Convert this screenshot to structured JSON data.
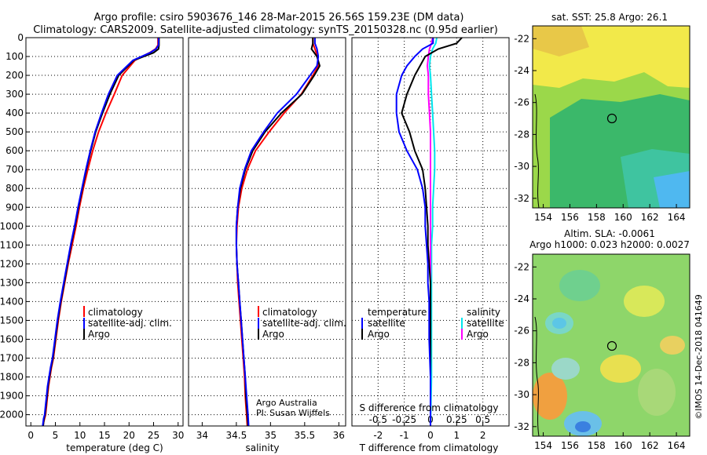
{
  "header": {
    "title_line1": "Argo profile: csiro 5903676_146 28-Mar-2015 26.56S 159.23E (DM data)",
    "title_line2": "Climatology: CARS2009. Satellite-adjusted climatology: synTS_20150328.nc (0.95d earlier)"
  },
  "colors": {
    "climatology": "#ff0000",
    "satellite": "#0000ff",
    "argo": "#000000",
    "sat_salinity": "#00e5ee",
    "argo_salinity": "#ff00ff"
  },
  "depth_axis": {
    "ticks": [
      "0",
      "100",
      "200",
      "300",
      "400",
      "500",
      "600",
      "700",
      "800",
      "900",
      "1000",
      "1100",
      "1200",
      "1300",
      "1400",
      "1500",
      "1600",
      "1700",
      "1800",
      "1900",
      "2000"
    ]
  },
  "panels": {
    "temperature": {
      "xlabel": "temperature (deg C)",
      "xticks": [
        "0",
        "5",
        "10",
        "15",
        "20",
        "25",
        "30"
      ],
      "legend": [
        "climatology",
        "satellite-adj. clim.",
        "Argo"
      ]
    },
    "salinity": {
      "xlabel": "salinity",
      "xticks": [
        "34",
        "34.5",
        "35",
        "35.5",
        "36"
      ],
      "legend": [
        "climatology",
        "satellite-adj. clim.",
        "Argo"
      ],
      "credit_line1": "Argo Australia",
      "credit_line2": "PI: Susan Wijffels"
    },
    "difference": {
      "xlabel": "T difference from climatology",
      "xticks": [
        "-2",
        "-1",
        "0",
        "1",
        "2"
      ],
      "top_label": "S difference from climatology",
      "top_ticks": [
        "-0.5",
        "-0.25",
        "0",
        "0.25",
        "0.5"
      ],
      "legend_t_head": "temperature",
      "legend_s_head": "salinity",
      "legend_t": [
        "satellite",
        "Argo"
      ],
      "legend_s": [
        "satellite",
        "Argo"
      ]
    }
  },
  "maps": {
    "sst": {
      "title": "sat. SST: 25.8 Argo: 26.1",
      "yticks": [
        "-22",
        "-24",
        "-26",
        "-28",
        "-30",
        "-32"
      ],
      "xticks": [
        "154",
        "156",
        "158",
        "160",
        "162",
        "164"
      ]
    },
    "sla": {
      "title_line1": "Altim. SLA: -0.0061",
      "title_line2": "Argo h1000: 0.023 h2000: 0.0027",
      "yticks": [
        "-22",
        "-24",
        "-26",
        "-28",
        "-30",
        "-32"
      ],
      "xticks": [
        "154",
        "156",
        "158",
        "160",
        "162",
        "164"
      ]
    },
    "profile_position": {
      "lon": 159.23,
      "lat": -26.56
    }
  },
  "watermark": "©IMOS 14-Dec-2018 041649",
  "chart_data": [
    {
      "type": "line",
      "xlabel": "temperature (deg C)",
      "ylabel": "",
      "xlim": [
        -1,
        31
      ],
      "ylim": [
        2060,
        0
      ],
      "series": [
        {
          "name": "climatology",
          "x": [
            25.9,
            25.9,
            25.4,
            24.2,
            21.2,
            18.6,
            17.0,
            15.3,
            13.8,
            12.6,
            11.6,
            10.7,
            9.9,
            9.2,
            8.4,
            7.6,
            6.9,
            6.2,
            5.6,
            5.1,
            4.6,
            4.2,
            3.9,
            3.6,
            3.4,
            3.2,
            3.0,
            2.8,
            2.6,
            2.5
          ],
          "y": [
            0,
            40,
            60,
            80,
            120,
            200,
            300,
            400,
            500,
            600,
            700,
            800,
            900,
            1000,
            1100,
            1200,
            1300,
            1400,
            1500,
            1600,
            1700,
            1750,
            1800,
            1850,
            1900,
            1950,
            2000,
            2020,
            2040,
            2060
          ]
        },
        {
          "name": "satellite-adj. clim.",
          "x": [
            26.0,
            26.0,
            25.5,
            24.3,
            20.8,
            17.6,
            15.8,
            14.4,
            13.1,
            12.1,
            11.2,
            10.4,
            9.6,
            8.9,
            8.1,
            7.4,
            6.7,
            6.0,
            5.4,
            4.9,
            4.4,
            4.0,
            3.7,
            3.4,
            3.2,
            3.0,
            2.8,
            2.6,
            2.5,
            2.4
          ],
          "y": [
            0,
            40,
            60,
            80,
            120,
            200,
            300,
            400,
            500,
            600,
            700,
            800,
            900,
            1000,
            1100,
            1200,
            1300,
            1400,
            1500,
            1600,
            1700,
            1750,
            1800,
            1850,
            1900,
            1950,
            2000,
            2020,
            2040,
            2060
          ]
        },
        {
          "name": "Argo",
          "x": [
            26.1,
            26.1,
            26.0,
            25.0,
            21.0,
            17.9,
            16.1,
            14.6,
            13.2,
            12.2,
            11.3,
            10.5,
            9.7,
            9.0,
            8.2,
            7.5,
            6.8,
            6.1,
            5.5,
            5.0,
            4.5,
            4.1,
            3.8,
            3.5,
            3.3,
            3.1,
            2.9,
            2.7,
            2.6,
            2.5
          ],
          "y": [
            0,
            40,
            60,
            80,
            120,
            200,
            300,
            400,
            500,
            600,
            700,
            800,
            900,
            1000,
            1100,
            1200,
            1300,
            1400,
            1500,
            1600,
            1700,
            1750,
            1800,
            1850,
            1900,
            1950,
            2000,
            2020,
            2040,
            2060
          ]
        }
      ]
    },
    {
      "type": "line",
      "xlabel": "salinity",
      "ylabel": "",
      "xlim": [
        33.8,
        36.1
      ],
      "ylim": [
        2060,
        0
      ],
      "series": [
        {
          "name": "climatology",
          "x": [
            35.62,
            35.62,
            35.65,
            35.69,
            35.7,
            35.62,
            35.45,
            35.2,
            34.98,
            34.78,
            34.66,
            34.58,
            34.53,
            34.51,
            34.5,
            34.51,
            34.52,
            34.54,
            34.56,
            34.58,
            34.6,
            34.62,
            34.63,
            34.64,
            34.65,
            34.66
          ],
          "y": [
            0,
            30,
            60,
            100,
            150,
            200,
            300,
            400,
            500,
            600,
            700,
            800,
            900,
            1000,
            1100,
            1200,
            1300,
            1400,
            1500,
            1600,
            1700,
            1800,
            1900,
            1950,
            2000,
            2060
          ]
        },
        {
          "name": "satellite-adj. clim.",
          "x": [
            35.65,
            35.65,
            35.68,
            35.7,
            35.68,
            35.58,
            35.38,
            35.1,
            34.9,
            34.72,
            34.62,
            34.55,
            34.52,
            34.5,
            34.5,
            34.51,
            34.53,
            34.55,
            34.57,
            34.59,
            34.61,
            34.63,
            34.65,
            34.66,
            34.67,
            34.68
          ],
          "y": [
            0,
            30,
            60,
            100,
            150,
            200,
            300,
            400,
            500,
            600,
            700,
            800,
            900,
            1000,
            1100,
            1200,
            1300,
            1400,
            1500,
            1600,
            1700,
            1800,
            1900,
            1950,
            2000,
            2060
          ]
        },
        {
          "name": "Argo",
          "x": [
            35.62,
            35.62,
            35.6,
            35.68,
            35.72,
            35.64,
            35.46,
            35.16,
            34.92,
            34.74,
            34.63,
            34.56,
            34.52,
            34.5,
            34.5,
            34.51,
            34.53,
            34.55,
            34.57,
            34.59,
            34.61,
            34.63,
            34.64,
            34.65,
            34.66,
            34.67
          ],
          "y": [
            0,
            30,
            60,
            100,
            150,
            200,
            300,
            400,
            500,
            600,
            700,
            800,
            900,
            1000,
            1100,
            1200,
            1300,
            1400,
            1500,
            1600,
            1700,
            1800,
            1900,
            1950,
            2000,
            2060
          ]
        }
      ]
    },
    {
      "type": "line",
      "xlabel": "T difference from climatology",
      "ylabel": "",
      "xlim": [
        -3,
        3
      ],
      "ylim": [
        2060,
        0
      ],
      "secondary_xlabel": "S difference from climatology",
      "secondary_xlim": [
        -0.75,
        0.75
      ],
      "series": [
        {
          "name": "temperature satellite",
          "x": [
            0.1,
            0.1,
            -0.3,
            -0.6,
            -0.9,
            -1.1,
            -1.3,
            -1.3,
            -1.2,
            -0.9,
            -0.5,
            -0.3,
            -0.2,
            -0.2,
            -0.15,
            -0.1,
            -0.1,
            -0.05,
            -0.05,
            -0.05,
            0.0,
            0.0
          ],
          "y": [
            0,
            30,
            60,
            100,
            150,
            200,
            300,
            400,
            500,
            600,
            700,
            800,
            900,
            1000,
            1100,
            1200,
            1300,
            1400,
            1500,
            1600,
            1800,
            2060
          ]
        },
        {
          "name": "temperature Argo",
          "x": [
            1.2,
            1.0,
            0.3,
            -0.2,
            -0.4,
            -0.6,
            -0.9,
            -1.1,
            -0.8,
            -0.6,
            -0.3,
            -0.2,
            -0.15,
            -0.1,
            -0.1,
            -0.05,
            0.0,
            0.0,
            0.0,
            0.0,
            0.0,
            0.0
          ],
          "y": [
            0,
            30,
            60,
            100,
            150,
            200,
            300,
            400,
            500,
            600,
            700,
            800,
            900,
            1000,
            1100,
            1200,
            1300,
            1400,
            1500,
            1600,
            1800,
            2060
          ]
        },
        {
          "name": "salinity satellite",
          "x": [
            0.06,
            0.05,
            0.02,
            0.0,
            -0.01,
            0.0,
            0.01,
            0.02,
            0.03,
            0.04,
            0.04,
            0.03,
            0.02,
            0.02,
            0.01,
            0.01,
            0.01,
            0.01,
            0.01,
            0.0
          ],
          "y": [
            0,
            30,
            60,
            100,
            150,
            200,
            300,
            400,
            500,
            600,
            700,
            800,
            900,
            1000,
            1100,
            1200,
            1300,
            1500,
            1800,
            2060
          ]
        },
        {
          "name": "salinity Argo",
          "x": [
            0.02,
            0.01,
            -0.01,
            -0.02,
            -0.03,
            -0.02,
            -0.02,
            -0.01,
            0.0,
            0.0,
            0.0,
            0.0,
            0.0,
            0.0,
            0.0,
            0.0,
            0.0,
            0.0,
            0.0,
            0.0
          ],
          "y": [
            0,
            30,
            60,
            100,
            150,
            200,
            300,
            400,
            500,
            600,
            700,
            800,
            900,
            1000,
            1100,
            1200,
            1300,
            1500,
            1800,
            2060
          ]
        }
      ]
    }
  ]
}
